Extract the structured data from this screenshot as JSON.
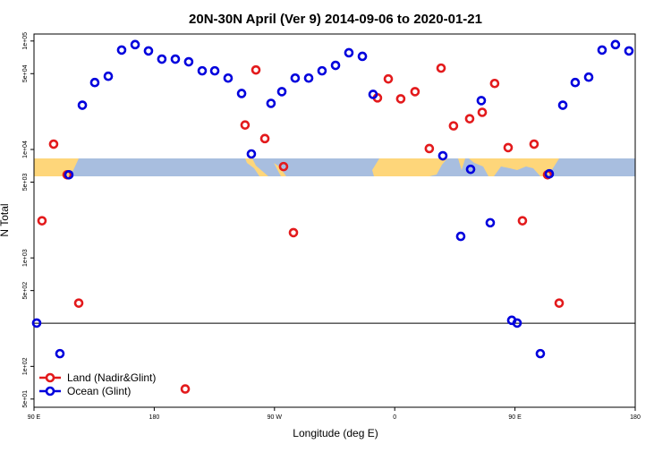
{
  "chart_data": {
    "type": "scatter",
    "title": "20N-30N April (Ver 9)   2014-09-06 to 2020-01-21",
    "xlabel": "Longitude (deg E)",
    "ylabel": "N Total",
    "log_y": true,
    "legend": "lower left",
    "hline": 250,
    "xlim": [
      90,
      540
    ],
    "xticks": [
      {
        "value": 90,
        "label": "90 E"
      },
      180,
      {
        "value": 270,
        "label": "90 W"
      },
      {
        "value": 360,
        "label": "0"
      },
      {
        "value": 450,
        "label": "90 E"
      },
      {
        "value": 540,
        "label": "180"
      }
    ],
    "ylim": [
      42,
      116000
    ],
    "yticks": [
      {
        "value": 50,
        "label": "5e+01"
      },
      {
        "value": 100,
        "label": "1e+02"
      },
      {
        "value": 500,
        "label": "5e+02"
      },
      {
        "value": 1000,
        "label": "1e+03"
      },
      {
        "value": 5000,
        "label": "5e+03"
      },
      {
        "value": 10000,
        "label": "1e+04"
      },
      {
        "value": 50000,
        "label": "5e+04"
      },
      {
        "value": 100000,
        "label": "1e+05"
      }
    ],
    "series": [
      {
        "name": "Land (Nadir&Glint)",
        "color": "#e31a1c",
        "x": [
          96.0,
          104.7,
          114.8,
          123.5,
          203.2,
          248.0,
          256.1,
          262.8,
          276.8,
          284.2,
          347.1,
          355.2,
          364.5,
          375.2,
          385.9,
          394.7,
          404.0,
          416.1,
          425.5,
          434.8,
          444.9,
          455.6,
          464.3,
          474.4,
          483.1
        ],
        "values": [
          2200,
          11200,
          5840,
          383,
          61.9,
          16800,
          54100,
          12600,
          6950,
          1710,
          29900,
          44700,
          29300,
          34100,
          10200,
          56200,
          16500,
          19200,
          22000,
          40600,
          10400,
          2200,
          11200,
          5840,
          383
        ]
      },
      {
        "name": "Ocean (Glint)",
        "color": "#0000dd",
        "x": [
          92.0,
          109.4,
          116.1,
          126.2,
          135.5,
          145.6,
          155.6,
          165.7,
          175.7,
          185.7,
          195.8,
          205.8,
          215.9,
          225.3,
          235.3,
          245.4,
          252.7,
          267.4,
          275.5,
          285.5,
          295.6,
          305.6,
          315.7,
          325.7,
          335.8,
          343.8,
          396.0,
          409.4,
          416.8,
          424.8,
          431.5,
          447.6,
          451.6,
          469.0,
          475.7,
          485.8,
          495.1,
          505.2,
          515.2,
          525.2,
          535.3
        ],
        "values": [
          251,
          131,
          5840,
          25600,
          41400,
          47300,
          82500,
          92600,
          81000,
          68100,
          68100,
          64300,
          53100,
          53100,
          45500,
          32800,
          9090,
          26600,
          34100,
          45500,
          45500,
          53100,
          59600,
          77900,
          72200,
          32200,
          8750,
          1580,
          6560,
          28200,
          2110,
          266,
          251,
          131,
          5960,
          25600,
          41400,
          46400,
          82500,
          92600,
          81000
        ]
      }
    ]
  }
}
